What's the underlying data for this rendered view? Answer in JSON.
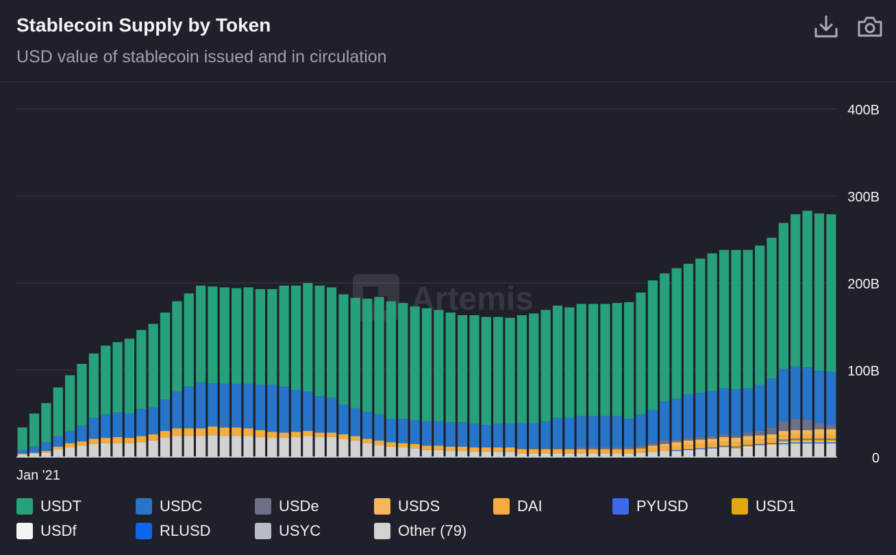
{
  "header": {
    "title": "Stablecoin Supply by Token",
    "subtitle": "USD value of stablecoin issued and in circulation",
    "download_icon": "download-icon",
    "camera_icon": "camera-icon"
  },
  "watermark": "Artemis",
  "legend": [
    {
      "name": "USDT",
      "color": "#26a17b"
    },
    {
      "name": "USDC",
      "color": "#2775ca"
    },
    {
      "name": "USDe",
      "color": "#6e7088"
    },
    {
      "name": "USDS",
      "color": "#f6b65c"
    },
    {
      "name": "DAI",
      "color": "#f4ad3d"
    },
    {
      "name": "PYUSD",
      "color": "#3c6ae8"
    },
    {
      "name": "USD1",
      "color": "#e2a80e"
    },
    {
      "name": "USDf",
      "color": "#f4f4f4"
    },
    {
      "name": "RLUSD",
      "color": "#0f66ee"
    },
    {
      "name": "USYC",
      "color": "#b8bcc6"
    },
    {
      "name": "Other (79)",
      "color": "#d2d2d2"
    }
  ],
  "chart_data": {
    "type": "stacked-bar",
    "title": "Stablecoin Supply by Token",
    "x_first_label": "Jan '21",
    "y_ticks": [
      "0",
      "100B",
      "200B",
      "300B",
      "400B"
    ],
    "ylim": [
      0,
      400
    ],
    "unit": "B",
    "stack_order": [
      "Other (79)",
      "USYC",
      "RLUSD",
      "USDf",
      "USD1",
      "PYUSD",
      "DAI",
      "USDS",
      "USDe",
      "USDC",
      "USDT"
    ],
    "series": [
      {
        "name": "Other (79)",
        "values": [
          3,
          4,
          5,
          9,
          11,
          13,
          15,
          16,
          16,
          16,
          17,
          19,
          22,
          24,
          24,
          24,
          25,
          24,
          24,
          24,
          23,
          22,
          22,
          23,
          24,
          23,
          23,
          21,
          19,
          16,
          14,
          12,
          11,
          10,
          8,
          8,
          7,
          7,
          6,
          6,
          6,
          6,
          4,
          4,
          4,
          4,
          4,
          4,
          4,
          4,
          4,
          4,
          5,
          6,
          7,
          7,
          8,
          9,
          10,
          11,
          10,
          11,
          12,
          13,
          14,
          15,
          15,
          15,
          15
        ]
      },
      {
        "name": "USYC",
        "values": [
          0,
          0,
          0,
          0,
          0,
          0,
          0,
          0,
          0,
          0,
          0,
          0,
          0,
          0,
          0,
          0,
          0,
          0,
          0,
          0,
          0,
          0,
          0,
          0,
          0,
          0,
          0,
          0,
          0,
          0,
          0,
          0,
          0,
          0,
          0,
          0,
          0,
          0,
          0,
          0,
          0,
          0,
          0,
          0,
          0,
          0,
          0,
          0,
          0,
          0,
          0,
          0,
          0,
          0,
          0,
          0,
          0,
          0,
          0,
          0,
          0,
          0,
          0,
          0,
          1,
          1,
          1,
          1,
          1
        ]
      },
      {
        "name": "RLUSD",
        "values": [
          0,
          0,
          0,
          0,
          0,
          0,
          0,
          0,
          0,
          0,
          0,
          0,
          0,
          0,
          0,
          0,
          0,
          0,
          0,
          0,
          0,
          0,
          0,
          0,
          0,
          0,
          0,
          0,
          0,
          0,
          0,
          0,
          0,
          0,
          0,
          0,
          0,
          0,
          0,
          0,
          0,
          0,
          0,
          0,
          0,
          0,
          0,
          0,
          0,
          0,
          0,
          0,
          0,
          0,
          0,
          0,
          0,
          0,
          0,
          0,
          0,
          0,
          0,
          0,
          1,
          1,
          1,
          1,
          1
        ]
      },
      {
        "name": "USDf",
        "values": [
          0,
          0,
          0,
          0,
          0,
          0,
          0,
          0,
          0,
          0,
          0,
          0,
          0,
          0,
          0,
          0,
          0,
          0,
          0,
          0,
          0,
          0,
          0,
          0,
          0,
          0,
          0,
          0,
          0,
          0,
          0,
          0,
          0,
          0,
          0,
          0,
          0,
          0,
          0,
          0,
          0,
          0,
          0,
          0,
          0,
          0,
          0,
          0,
          0,
          0,
          0,
          0,
          0,
          0,
          0,
          0,
          0,
          0,
          0,
          0,
          0,
          1,
          1,
          1,
          1,
          1,
          1,
          1,
          1
        ]
      },
      {
        "name": "USD1",
        "values": [
          0,
          0,
          0,
          0,
          0,
          0,
          0,
          0,
          0,
          0,
          0,
          0,
          0,
          0,
          0,
          0,
          0,
          0,
          0,
          0,
          0,
          0,
          0,
          0,
          0,
          0,
          0,
          0,
          0,
          0,
          0,
          0,
          0,
          0,
          0,
          0,
          0,
          0,
          0,
          0,
          0,
          0,
          0,
          0,
          0,
          0,
          0,
          0,
          0,
          0,
          0,
          0,
          0,
          0,
          0,
          0,
          0,
          0,
          0,
          1,
          1,
          1,
          1,
          1,
          2,
          2,
          2,
          2,
          2
        ]
      },
      {
        "name": "PYUSD",
        "values": [
          0,
          0,
          0,
          0,
          0,
          0,
          0,
          0,
          0,
          0,
          0,
          0,
          0,
          0,
          0,
          0,
          0,
          0,
          0,
          0,
          0,
          0,
          0,
          0,
          0,
          0,
          0,
          0,
          0,
          0,
          0,
          0,
          0,
          0,
          0,
          0,
          0,
          0,
          0,
          0,
          0,
          0,
          0,
          0,
          0,
          0,
          0,
          0,
          0,
          0,
          0,
          0,
          0,
          0,
          0,
          1,
          1,
          1,
          1,
          1,
          1,
          1,
          1,
          1,
          1,
          1,
          1,
          1,
          1
        ]
      },
      {
        "name": "DAI",
        "values": [
          1,
          1,
          2,
          3,
          5,
          5,
          6,
          6,
          7,
          6,
          7,
          7,
          8,
          9,
          9,
          9,
          10,
          10,
          10,
          9,
          8,
          7,
          6,
          6,
          6,
          5,
          5,
          5,
          5,
          5,
          5,
          5,
          5,
          5,
          5,
          5,
          5,
          5,
          5,
          5,
          5,
          5,
          5,
          5,
          5,
          5,
          5,
          5,
          5,
          5,
          5,
          5,
          5,
          5,
          5,
          5,
          5,
          5,
          5,
          5,
          5,
          5,
          5,
          5,
          5,
          5,
          5,
          5,
          5
        ]
      },
      {
        "name": "USDS",
        "values": [
          0,
          0,
          0,
          0,
          0,
          0,
          0,
          0,
          0,
          0,
          0,
          0,
          0,
          0,
          0,
          0,
          0,
          0,
          0,
          0,
          0,
          0,
          0,
          0,
          0,
          0,
          0,
          0,
          0,
          0,
          0,
          0,
          0,
          0,
          0,
          0,
          0,
          0,
          0,
          0,
          0,
          0,
          0,
          0,
          0,
          0,
          0,
          0,
          0,
          0,
          0,
          0,
          0,
          2,
          3,
          4,
          5,
          5,
          5,
          5,
          5,
          5,
          5,
          5,
          5,
          5,
          5,
          6,
          6
        ]
      },
      {
        "name": "USDe",
        "values": [
          0,
          0,
          0,
          0,
          0,
          0,
          0,
          0,
          0,
          0,
          0,
          0,
          0,
          0,
          0,
          0,
          0,
          0,
          0,
          0,
          0,
          0,
          0,
          0,
          0,
          0,
          0,
          0,
          0,
          0,
          0,
          0,
          0,
          0,
          0,
          0,
          0,
          0,
          0,
          0,
          0,
          0,
          1,
          1,
          1,
          1,
          1,
          2,
          2,
          2,
          2,
          2,
          3,
          3,
          4,
          3,
          3,
          3,
          3,
          3,
          3,
          4,
          5,
          8,
          11,
          13,
          12,
          7,
          5
        ]
      },
      {
        "name": "USDC",
        "values": [
          4,
          7,
          10,
          12,
          14,
          18,
          24,
          27,
          28,
          28,
          31,
          31,
          36,
          42,
          48,
          53,
          50,
          50,
          50,
          51,
          52,
          54,
          53,
          48,
          45,
          42,
          40,
          34,
          32,
          31,
          30,
          27,
          28,
          27,
          28,
          28,
          28,
          28,
          27,
          26,
          27,
          27,
          29,
          29,
          31,
          35,
          35,
          36,
          36,
          36,
          36,
          33,
          36,
          38,
          45,
          47,
          50,
          51,
          52,
          53,
          53,
          51,
          53,
          56,
          60,
          60,
          60,
          60,
          61
        ]
      },
      {
        "name": "USDT",
        "values": [
          26,
          38,
          45,
          56,
          64,
          71,
          74,
          79,
          81,
          86,
          91,
          96,
          100,
          104,
          107,
          111,
          111,
          111,
          110,
          111,
          110,
          110,
          116,
          120,
          125,
          127,
          127,
          127,
          127,
          130,
          135,
          135,
          133,
          131,
          130,
          128,
          126,
          123,
          125,
          124,
          123,
          122,
          124,
          126,
          128,
          129,
          127,
          129,
          129,
          129,
          130,
          134,
          140,
          149,
          147,
          150,
          150,
          154,
          158,
          159,
          160,
          159,
          160,
          162,
          168,
          175,
          180,
          181,
          181
        ]
      }
    ]
  }
}
